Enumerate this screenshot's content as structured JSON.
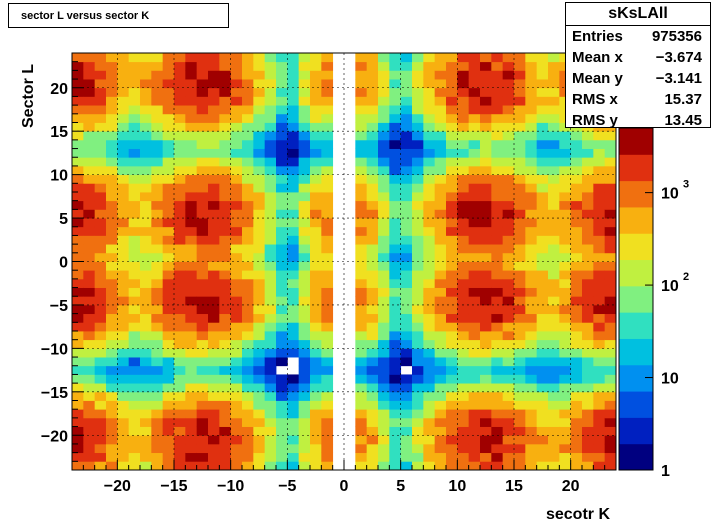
{
  "title": "sector L versus sector K",
  "stats": {
    "name": "sKsLAll",
    "rows": [
      {
        "label": "Entries",
        "value": "975356"
      },
      {
        "label": "Mean x",
        "value": "−3.674"
      },
      {
        "label": "Mean y",
        "value": "−3.141"
      },
      {
        "label": "RMS x",
        "value": "15.37"
      },
      {
        "label": "RMS y",
        "value": "13.45"
      }
    ]
  },
  "chart_data": {
    "type": "heatmap",
    "title": "sector L versus sector K",
    "xlabel": "secotr K",
    "ylabel": "Sector L",
    "xlim": [
      -24,
      24
    ],
    "ylim": [
      -24,
      24
    ],
    "z_scale": "log",
    "zlim": [
      1,
      5000
    ],
    "grid": true,
    "x_ticks": [
      "−20",
      "−15",
      "−10",
      "−5",
      "0",
      "5",
      "10",
      "15",
      "20"
    ],
    "x_tick_values": [
      -20,
      -15,
      -10,
      -5,
      0,
      5,
      10,
      15,
      20
    ],
    "y_ticks": [
      "−20",
      "−15",
      "−10",
      "−5",
      "0",
      "5",
      "10",
      "15",
      "20"
    ],
    "y_tick_values": [
      -20,
      -15,
      -10,
      -5,
      0,
      5,
      10,
      15,
      20
    ],
    "z_ticks": [
      {
        "value": 1,
        "base": "1",
        "exp": ""
      },
      {
        "value": 10,
        "base": "10",
        "exp": ""
      },
      {
        "value": 100,
        "base": "10",
        "exp": "2"
      },
      {
        "value": 1000,
        "base": "10",
        "exp": "3"
      }
    ],
    "cluster_centers_x": [
      -24,
      -12.5,
      -1.5,
      1.5,
      12.5,
      24
    ],
    "cluster_centers_y": [
      -20.5,
      -4.5,
      5.5,
      20.5
    ],
    "cluster_peak_counts": [
      3000,
      3000,
      800,
      800,
      3000,
      3000
    ]
  },
  "colors": {
    "palette": [
      "#000080",
      "#0020c0",
      "#0050e0",
      "#0090f0",
      "#00c0e0",
      "#30e0c0",
      "#80f080",
      "#c0f040",
      "#f0e020",
      "#f8b010",
      "#f07010",
      "#e03010",
      "#a00000"
    ]
  }
}
